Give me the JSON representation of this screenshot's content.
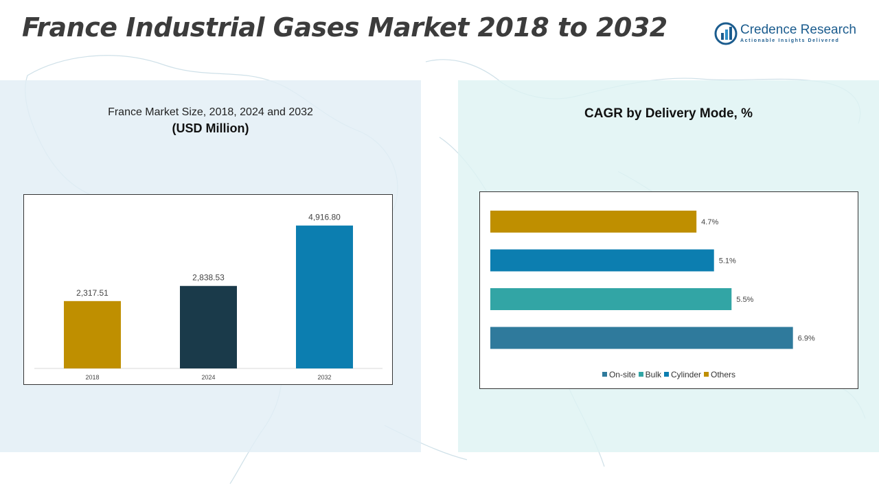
{
  "page": {
    "title": "France Industrial Gases Market 2018 to 2032"
  },
  "logo": {
    "name": "Credence Research",
    "tagline": "Actionable Insights Delivered",
    "color": "#1b5c8e"
  },
  "left_chart": {
    "title_line1": "France Market Size, 2018, 2024 and 2032",
    "title_line2": "(USD Million)"
  },
  "right_chart": {
    "title": "CAGR by Delivery Mode, %"
  },
  "chart_data": [
    {
      "type": "bar",
      "title": "France Market Size, 2018, 2024 and 2032",
      "subtitle": "(USD Million)",
      "categories": [
        "2018",
        "2024",
        "2032"
      ],
      "values": [
        2317.51,
        2838.53,
        4916.8
      ],
      "value_labels": [
        "2,317.51",
        "2,838.53",
        "4,916.80"
      ],
      "colors": [
        "#bf8f00",
        "#1a3a4a",
        "#0c7eb0"
      ],
      "ylim": [
        0,
        5500
      ],
      "grid": false
    },
    {
      "type": "bar",
      "orientation": "horizontal",
      "title": "CAGR by Delivery Mode, %",
      "categories": [
        "Others",
        "Cylinder",
        "Bulk",
        "On-site"
      ],
      "values": [
        4.7,
        5.1,
        5.5,
        6.9
      ],
      "value_labels": [
        "4.7%",
        "5.1%",
        "5.5%",
        "6.9%"
      ],
      "colors": [
        "#bf8f00",
        "#0c7eb0",
        "#32a5a5",
        "#2f7a9c"
      ],
      "xlim": [
        0,
        7.5
      ],
      "grid": false,
      "legend": {
        "placement": "bottom",
        "items": [
          {
            "label": "On-site",
            "color": "#2f7a9c"
          },
          {
            "label": "Bulk",
            "color": "#32a5a5"
          },
          {
            "label": "Cylinder",
            "color": "#0c7eb0"
          },
          {
            "label": "Others",
            "color": "#bf8f00"
          }
        ]
      }
    }
  ]
}
